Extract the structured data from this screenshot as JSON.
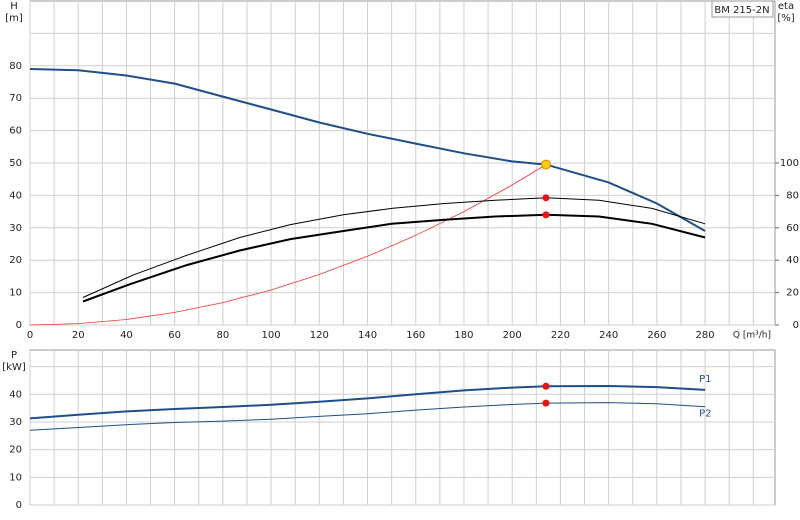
{
  "chart_data": [
    {
      "type": "line",
      "ylabel": "H",
      "yunit": "[m]",
      "y2label": "eta",
      "y2unit": "[%]",
      "xlabel": "Q [m³/h]",
      "model": "BM 215-2N",
      "xlim": [
        0,
        309
      ],
      "xticks": [
        0,
        20,
        40,
        60,
        80,
        100,
        120,
        140,
        160,
        180,
        200,
        220,
        240,
        260,
        280
      ],
      "ylim": [
        0,
        100
      ],
      "yticks": [
        0,
        10,
        20,
        30,
        40,
        50,
        60,
        70,
        80
      ],
      "y2lim": [
        0,
        200
      ],
      "y2ticks": [
        0,
        20,
        40,
        60,
        80,
        100
      ],
      "grid": true,
      "series": [
        {
          "color": "#1f4e8c",
          "width": 2,
          "x": [
            0,
            20,
            40,
            60,
            80,
            100,
            120,
            140,
            160,
            180,
            200,
            214,
            240,
            260,
            280
          ],
          "values": [
            79,
            78.6,
            77,
            74.5,
            70.5,
            66.5,
            62.5,
            59,
            56,
            53,
            50.5,
            49.5,
            44,
            37.5,
            29
          ]
        },
        {
          "color": "#ff3030",
          "width": 0.8,
          "x": [
            0,
            20,
            40,
            60,
            80,
            100,
            120,
            140,
            160,
            180,
            200,
            214
          ],
          "values": [
            0,
            0.43,
            1.7,
            3.9,
            6.9,
            10.8,
            15.6,
            21.2,
            27.7,
            35,
            43.2,
            49.5
          ]
        },
        {
          "color": "#000000",
          "width": 1,
          "axis": "y2",
          "x": [
            22,
            43,
            65,
            87,
            108,
            130,
            150,
            172,
            193,
            214,
            236,
            258,
            280
          ],
          "values": [
            17,
            31,
            43,
            54,
            62,
            68,
            72,
            75,
            77,
            78.5,
            77,
            72,
            62.5
          ]
        },
        {
          "color": "#000000",
          "width": 2,
          "axis": "y2",
          "x": [
            22,
            43,
            65,
            87,
            108,
            130,
            150,
            172,
            193,
            214,
            236,
            258,
            280
          ],
          "values": [
            14.5,
            26,
            37,
            46,
            53,
            58,
            62.5,
            65,
            67,
            68,
            67,
            62.5,
            54
          ]
        }
      ],
      "points": [
        {
          "x": 214,
          "y": 49.5,
          "color": "#ffcc00"
        },
        {
          "x": 214,
          "y": 78.5,
          "axis": "y2",
          "color": "#ee1111"
        },
        {
          "x": 214,
          "y": 68,
          "axis": "y2",
          "color": "#ee1111"
        }
      ]
    },
    {
      "type": "line",
      "ylabel": "P",
      "yunit": "[kW]",
      "xlim": [
        0,
        309
      ],
      "xticks": [
        0,
        20,
        40,
        60,
        80,
        100,
        120,
        140,
        160,
        180,
        200,
        220,
        240,
        260,
        280
      ],
      "xtick_labels": false,
      "ylim": [
        0,
        56
      ],
      "yticks": [
        0,
        10,
        20,
        30,
        40
      ],
      "grid": true,
      "series": [
        {
          "name": "P1",
          "color": "#1f4e8c",
          "width": 2,
          "x": [
            0,
            20,
            40,
            60,
            80,
            100,
            120,
            140,
            160,
            180,
            200,
            214,
            240,
            260,
            280
          ],
          "values": [
            31.3,
            32.6,
            33.8,
            34.7,
            35.4,
            36.2,
            37.3,
            38.5,
            40,
            41.4,
            42.4,
            42.9,
            43,
            42.6,
            41.6
          ]
        },
        {
          "name": "P2",
          "color": "#1f4e8c",
          "width": 1,
          "x": [
            0,
            20,
            40,
            60,
            80,
            100,
            120,
            140,
            160,
            180,
            200,
            214,
            240,
            260,
            280
          ],
          "values": [
            27,
            28,
            29,
            29.8,
            30.3,
            31,
            32,
            33,
            34.3,
            35.4,
            36.3,
            36.8,
            37,
            36.6,
            35.5
          ]
        }
      ],
      "points": [
        {
          "x": 214,
          "y": 42.9,
          "color": "#ee1111"
        },
        {
          "x": 214,
          "y": 36.8,
          "color": "#ee1111"
        }
      ]
    }
  ]
}
